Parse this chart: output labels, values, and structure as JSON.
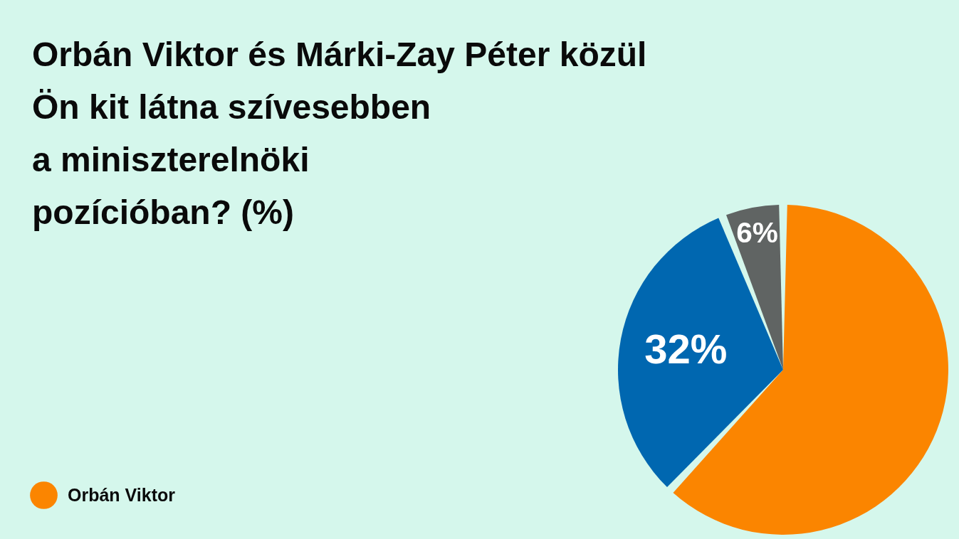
{
  "chart_data": {
    "type": "pie",
    "title": "Orbán Viktor és Márki-Zay Péter közül\nÖn kit látna szívesebben\na miniszterelnöki\npozícióban? (%)",
    "categories": [
      "Orbán Viktor",
      null,
      null
    ],
    "values": [
      62,
      32,
      6
    ],
    "colors": [
      "#fb8500",
      "#0067b0",
      "#606463"
    ],
    "value_labels": [
      null,
      "32%",
      "6%"
    ],
    "legend": "bottom left"
  }
}
